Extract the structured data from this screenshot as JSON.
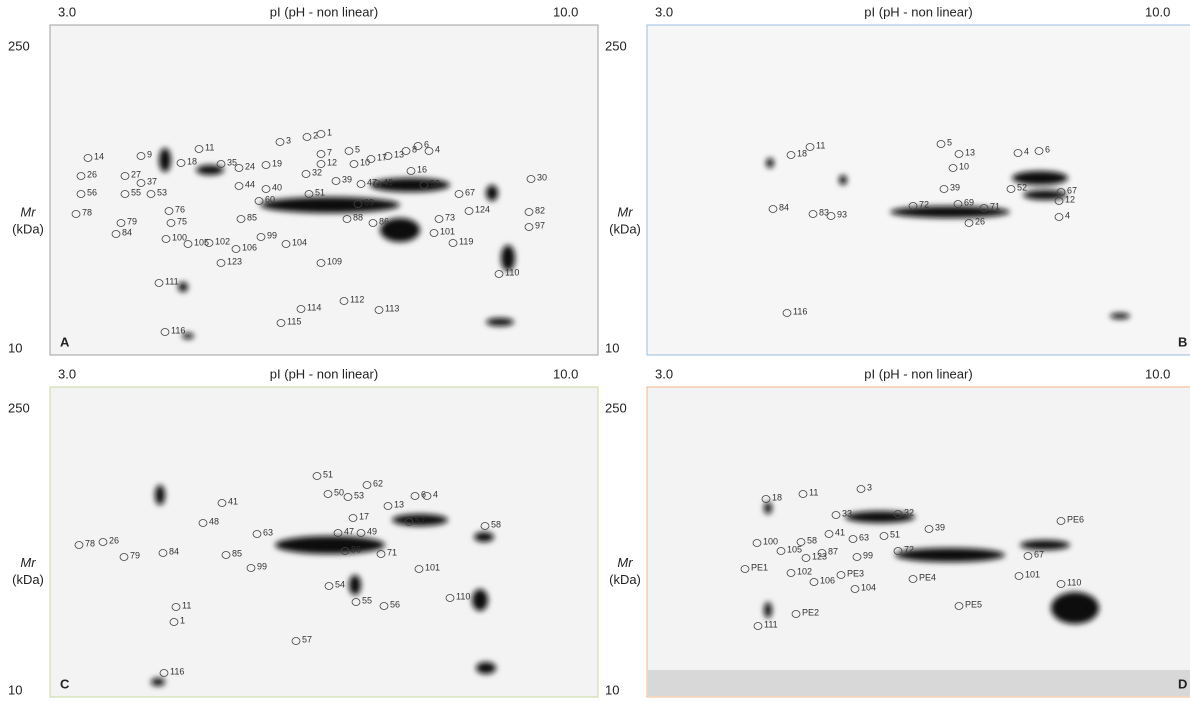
{
  "figure": {
    "panels": [
      {
        "label": "A",
        "ph_min": "3.0",
        "ph_axis": "pI (pH - non linear)",
        "ph_max": "10.0",
        "mw_max": "250",
        "mw_min": "10",
        "mr": "Mr",
        "unit": "(kDa)",
        "spots": [
          "14",
          "26",
          "56",
          "53",
          "78",
          "79",
          "27",
          "55",
          "9",
          "37",
          "11",
          "18",
          "35",
          "24",
          "19",
          "3",
          "2",
          "1",
          "5",
          "7",
          "12",
          "10",
          "17",
          "13",
          "8",
          "6",
          "4",
          "16",
          "32",
          "39",
          "47",
          "49",
          "52",
          "67",
          "30",
          "82",
          "97",
          "124",
          "73",
          "101",
          "119",
          "86",
          "88",
          "69",
          "51",
          "104",
          "99",
          "85",
          "60",
          "40",
          "44",
          "84",
          "76",
          "75",
          "100",
          "105",
          "102",
          "106",
          "123",
          "109",
          "110",
          "111",
          "114",
          "115",
          "112",
          "113",
          "116"
        ]
      },
      {
        "label": "B",
        "ph_min": "3.0",
        "ph_axis": "pI (pH - non linear)",
        "ph_max": "10.0",
        "mw_max": "250",
        "mw_min": "10",
        "mr": "Mr",
        "unit": "(kDa)",
        "spots": [
          "11",
          "18",
          "5",
          "10",
          "13",
          "4",
          "6",
          "39",
          "52",
          "67",
          "12",
          "4",
          "84",
          "83",
          "93",
          "72",
          "69",
          "71",
          "26",
          "116"
        ]
      },
      {
        "label": "C",
        "ph_min": "3.0",
        "ph_axis": "pI (pH - non linear)",
        "ph_max": "10.0",
        "mw_max": "250",
        "mw_min": "10",
        "mr": "Mr",
        "unit": "(kDa)",
        "spots": [
          "26",
          "78",
          "79",
          "84",
          "48",
          "41",
          "85",
          "63",
          "99",
          "51",
          "50",
          "53",
          "62",
          "13",
          "6",
          "4",
          "17",
          "47",
          "49",
          "52",
          "58",
          "86",
          "71",
          "101",
          "54",
          "55",
          "56",
          "110",
          "11",
          "1",
          "57",
          "116"
        ]
      },
      {
        "label": "D",
        "ph_min": "3.0",
        "ph_axis": "pI (pH - non linear)",
        "ph_max": "10.0",
        "mw_max": "250",
        "mw_min": "10",
        "mr": "Mr",
        "unit": "(kDa)",
        "spots": [
          "18",
          "11",
          "3",
          "33",
          "32",
          "39",
          "58",
          "41",
          "63",
          "51",
          "72",
          "100",
          "105",
          "123",
          "87",
          "99",
          "102",
          "106",
          "PE3",
          "104",
          "PE1",
          "PE2",
          "PE4",
          "PE5",
          "101",
          "67",
          "PE6",
          "110",
          "111"
        ]
      }
    ]
  }
}
